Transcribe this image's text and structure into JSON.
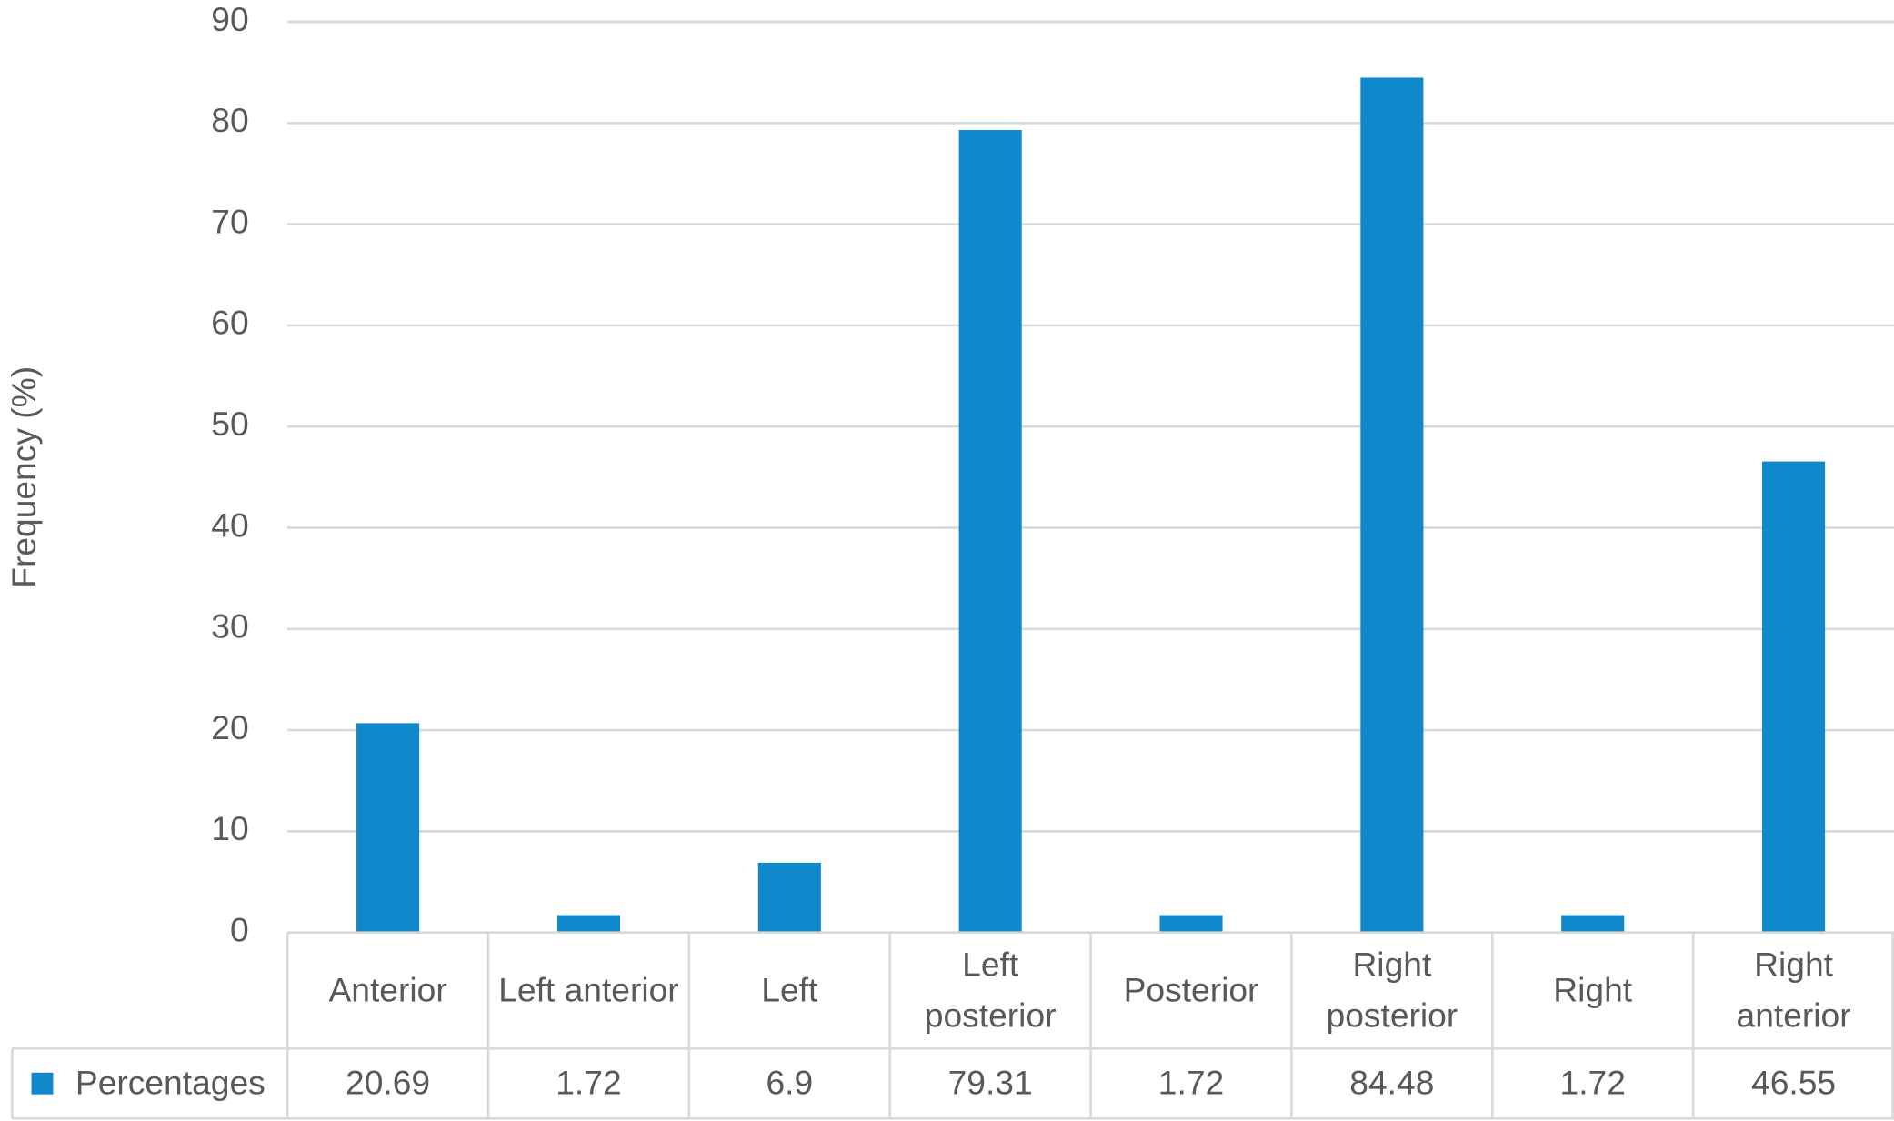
{
  "chart_data": {
    "type": "bar",
    "y_label": "Frequency (%)",
    "categories": [
      "Anterior",
      "Left anterior",
      "Left",
      "Left posterior",
      "Posterior",
      "Right posterior",
      "Right",
      "Right anterior"
    ],
    "series": [
      {
        "name": "Percentages",
        "color": "#1088cc",
        "values": [
          20.69,
          1.72,
          6.9,
          79.31,
          1.72,
          84.48,
          1.72,
          46.55
        ]
      }
    ],
    "ylim": [
      0,
      90
    ],
    "yticks": [
      0,
      10,
      20,
      30,
      40,
      50,
      60,
      70,
      80,
      90
    ],
    "grid": true,
    "data_table": true
  }
}
